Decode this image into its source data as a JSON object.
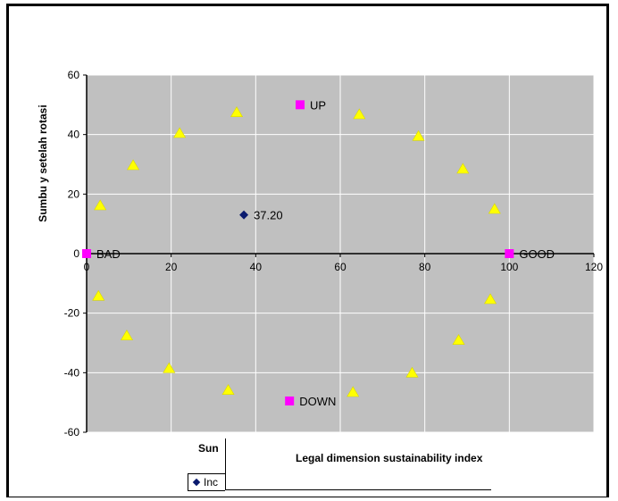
{
  "chart_data": {
    "type": "scatter",
    "ylabel": "Sumbu y setelah rotasi",
    "xlabel_left": "Sun",
    "xlabel_overlay": "Legal dimension sustainability index",
    "legend_text": "Inc",
    "xlim": [
      0,
      120
    ],
    "ylim": [
      -60,
      60
    ],
    "x_ticks": [
      "0",
      "20",
      "40",
      "60",
      "80",
      "100",
      "120"
    ],
    "y_ticks": [
      "60",
      "40",
      "20",
      "0",
      "-20",
      "-40",
      "-60"
    ],
    "grid": true,
    "colors": {
      "plot_bg": "#c0c0c0",
      "grid": "#ffffff",
      "yellow": "#ffff00",
      "reference": "#ff00ff",
      "index": "#0a1a6e"
    },
    "series": [
      {
        "marker": "triangle",
        "points": [
          [
            35.5,
            47.5
          ],
          [
            22,
            40.5
          ],
          [
            11,
            29.7
          ],
          [
            3.2,
            16.2
          ],
          [
            2.8,
            -14.2
          ],
          [
            9.5,
            -27.5
          ],
          [
            19.5,
            -38.5
          ],
          [
            33.5,
            -45.8
          ],
          [
            64.5,
            46.8
          ],
          [
            78.5,
            39.5
          ],
          [
            89,
            28.5
          ],
          [
            96.5,
            15
          ],
          [
            95.5,
            -15.3
          ],
          [
            88,
            -29
          ],
          [
            77,
            -40
          ],
          [
            63,
            -46.5
          ]
        ]
      },
      {
        "marker": "square",
        "points": [
          {
            "x": 0,
            "y": 0,
            "label": "BAD"
          },
          {
            "x": 100,
            "y": 0,
            "label": "GOOD"
          },
          {
            "x": 50.5,
            "y": 50,
            "label": "UP"
          },
          {
            "x": 48,
            "y": -49.5,
            "label": "DOWN"
          }
        ]
      },
      {
        "marker": "diamond",
        "points": [
          {
            "x": 37.2,
            "y": 13,
            "label": "37.20"
          }
        ]
      }
    ]
  }
}
